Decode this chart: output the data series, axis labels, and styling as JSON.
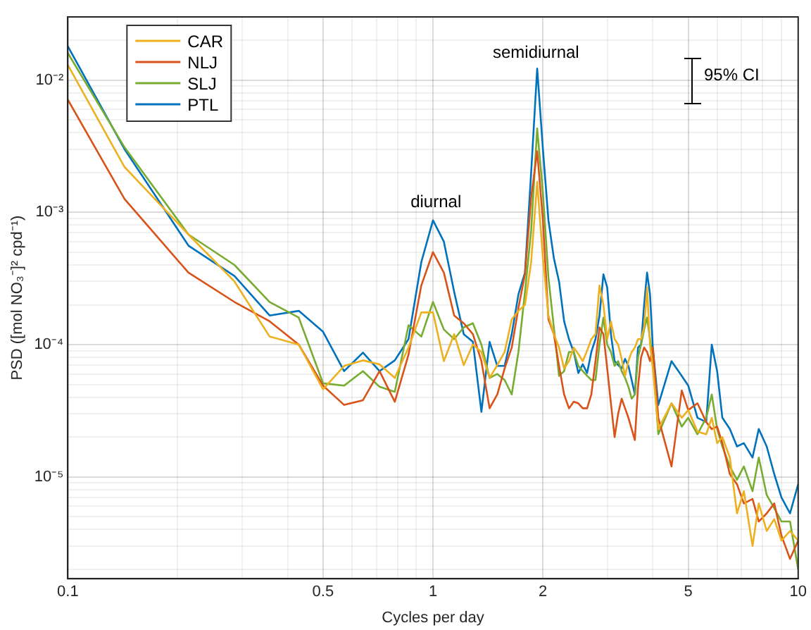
{
  "chart_data": {
    "type": "line",
    "xlabel": "Cycles per day",
    "ylabel": "PSD ([mol NO₃⁻]² cpd⁻¹)",
    "log": "xy",
    "grid": true,
    "legend": "top left",
    "xlim": [
      0.1,
      10
    ],
    "xticks": [
      0.1,
      {
        "value": 0.2,
        "label": null
      },
      {
        "value": 0.3,
        "label": null
      },
      {
        "value": 0.4,
        "label": null
      },
      0.5,
      {
        "value": 0.6,
        "label": null
      },
      {
        "value": 0.7,
        "label": null
      },
      {
        "value": 0.8,
        "label": null
      },
      {
        "value": 0.9,
        "label": null
      },
      1,
      2,
      {
        "value": 3,
        "label": null
      },
      {
        "value": 4,
        "label": null
      },
      5,
      {
        "value": 6,
        "label": null
      },
      {
        "value": 7,
        "label": null
      },
      {
        "value": 8,
        "label": null
      },
      {
        "value": 9,
        "label": null
      },
      10
    ],
    "ylim": [
      1.7e-06,
      0.03
    ],
    "yticks": [
      {
        "value": 2e-06,
        "label": null
      },
      {
        "value": 3e-06,
        "label": null
      },
      {
        "value": 4e-06,
        "label": null
      },
      {
        "value": 5e-06,
        "label": null
      },
      {
        "value": 6e-06,
        "label": null
      },
      {
        "value": 7e-06,
        "label": null
      },
      {
        "value": 8e-06,
        "label": null
      },
      {
        "value": 9e-06,
        "label": null
      },
      {
        "value": 1e-05,
        "label": "10⁻⁵"
      },
      {
        "value": 2e-05,
        "label": null
      },
      {
        "value": 3e-05,
        "label": null
      },
      {
        "value": 4e-05,
        "label": null
      },
      {
        "value": 5e-05,
        "label": null
      },
      {
        "value": 6e-05,
        "label": null
      },
      {
        "value": 7e-05,
        "label": null
      },
      {
        "value": 8e-05,
        "label": null
      },
      {
        "value": 9e-05,
        "label": null
      },
      {
        "value": 0.0001,
        "label": "10⁻⁴"
      },
      {
        "value": 0.0002,
        "label": null
      },
      {
        "value": 0.0003,
        "label": null
      },
      {
        "value": 0.0004,
        "label": null
      },
      {
        "value": 0.0005,
        "label": null
      },
      {
        "value": 0.0006,
        "label": null
      },
      {
        "value": 0.0007,
        "label": null
      },
      {
        "value": 0.0008,
        "label": null
      },
      {
        "value": 0.0009,
        "label": null
      },
      {
        "value": 0.001,
        "label": "10⁻³"
      },
      {
        "value": 0.002,
        "label": null
      },
      {
        "value": 0.003,
        "label": null
      },
      {
        "value": 0.004,
        "label": null
      },
      {
        "value": 0.005,
        "label": null
      },
      {
        "value": 0.006,
        "label": null
      },
      {
        "value": 0.007,
        "label": null
      },
      {
        "value": 0.008,
        "label": null
      },
      {
        "value": 0.009,
        "label": null
      },
      {
        "value": 0.01,
        "label": "10⁻²"
      },
      {
        "value": 0.02,
        "label": null
      },
      {
        "value": 0.03,
        "label": null
      }
    ],
    "annotations": [
      "diurnal",
      "semidiurnal",
      "95% CI"
    ],
    "x": [
      0.1,
      0.143,
      0.214,
      0.286,
      0.357,
      0.429,
      0.5,
      0.571,
      0.643,
      0.714,
      0.786,
      0.857,
      0.929,
      1.0,
      1.071,
      1.143,
      1.214,
      1.286,
      1.357,
      1.429,
      1.5,
      1.571,
      1.643,
      1.714,
      1.786,
      1.857,
      1.929,
      2.0,
      2.071,
      2.143,
      2.214,
      2.286,
      2.357,
      2.429,
      2.5,
      2.571,
      2.643,
      2.714,
      2.786,
      2.857,
      2.929,
      3.0,
      3.071,
      3.143,
      3.214,
      3.286,
      3.357,
      3.429,
      3.5,
      3.571,
      3.643,
      3.714,
      3.786,
      3.857,
      3.929,
      4.0,
      4.14,
      4.5,
      4.8,
      5.0,
      5.3,
      5.6,
      5.8,
      6.0,
      6.2,
      6.5,
      6.8,
      7.1,
      7.5,
      7.8,
      8.2,
      8.6,
      9.0,
      9.5,
      10
    ],
    "series": [
      {
        "name": "CAR",
        "color": "#edb120",
        "values": [
          0.013,
          0.0022,
          0.00068,
          0.0003,
          0.000115,
          0.0001,
          4.6e-05,
          6.9e-05,
          7.6e-05,
          7.1e-05,
          5.6e-05,
          9.5e-05,
          0.000175,
          0.000175,
          7.5e-05,
          0.00012,
          7e-05,
          0.0001,
          8.8e-05,
          5.6e-05,
          7e-05,
          8.8e-05,
          0.000155,
          0.00018,
          0.0002,
          0.00042,
          0.0017,
          0.00045,
          0.000166,
          0.00012,
          9.5e-05,
          6.6e-05,
          7.5e-05,
          9.5e-05,
          8.5e-05,
          7.5e-05,
          9e-05,
          0.00011,
          0.00012,
          0.00028,
          0.0002,
          0.00011,
          0.00015,
          0.00011,
          0.0001,
          7.8e-05,
          5.8e-05,
          7.5e-05,
          8.8e-05,
          9.5e-05,
          0.00011,
          0.00011,
          0.000135,
          0.00027,
          0.0001,
          6.6e-05,
          2.3e-05,
          3.6e-05,
          2.8e-05,
          3.2e-05,
          2.2e-05,
          2.1e-05,
          2.8e-05,
          1.8e-05,
          2e-05,
          1.4e-05,
          5.3e-06,
          7.8e-06,
          3e-06,
          6.3e-06,
          3.9e-06,
          4.8e-06,
          3.3e-06,
          3.9e-06,
          3.3e-06
        ]
      },
      {
        "name": "NLJ",
        "color": "#d95319",
        "values": [
          0.0071,
          0.00126,
          0.00035,
          0.00021,
          0.00015,
          0.0001,
          4.9e-05,
          3.5e-05,
          3.8e-05,
          6.3e-05,
          3.7e-05,
          8.4e-05,
          0.00028,
          0.0005,
          0.00035,
          0.000166,
          0.000145,
          0.00012,
          7.5e-05,
          3.3e-05,
          4.2e-05,
          6.6e-05,
          9.5e-05,
          0.00019,
          0.00034,
          0.0013,
          0.0029,
          0.00087,
          0.000155,
          0.00012,
          6.9e-05,
          4.2e-05,
          3.3e-05,
          3.7e-05,
          3.6e-05,
          3.3e-05,
          3.3e-05,
          4.2e-05,
          7.5e-05,
          0.000135,
          0.00012,
          6.6e-05,
          3.6e-05,
          2e-05,
          3e-05,
          3.9e-05,
          3.3e-05,
          2.8e-05,
          2.3e-05,
          1.9e-05,
          4.8e-05,
          8e-05,
          9.5e-05,
          8.8e-05,
          7.5e-05,
          9.5e-05,
          2.8e-05,
          1.2e-05,
          4.5e-05,
          3.2e-05,
          3.6e-05,
          2.6e-05,
          2.3e-05,
          2.4e-05,
          1.8e-05,
          1.05e-05,
          8.8e-06,
          6.3e-06,
          6.8e-06,
          4.6e-06,
          5.3e-06,
          6.3e-06,
          3.6e-06,
          2.4e-06,
          3.3e-06
        ]
      },
      {
        "name": "SLJ",
        "color": "#77ac30",
        "values": [
          0.016,
          0.0031,
          0.00068,
          0.0004,
          0.00021,
          0.00016,
          5.1e-05,
          4.9e-05,
          6.3e-05,
          4.8e-05,
          4.4e-05,
          0.00014,
          0.000115,
          0.00021,
          0.00013,
          0.00011,
          0.000135,
          0.000145,
          0.0001,
          5.6e-05,
          6e-05,
          5.4e-05,
          4.2e-05,
          8.8e-05,
          0.00025,
          0.00073,
          0.0043,
          0.0014,
          0.00032,
          0.000135,
          5.8e-05,
          6.3e-05,
          8.8e-05,
          8.8e-05,
          6.9e-05,
          6.3e-05,
          5.8e-05,
          5.4e-05,
          5.4e-05,
          0.0001,
          0.00016,
          0.0001,
          8.8e-05,
          6.9e-05,
          7.5e-05,
          6.3e-05,
          5.6e-05,
          4.8e-05,
          3.9e-05,
          4.2e-05,
          8e-05,
          0.0001,
          0.00013,
          0.00016,
          0.00011,
          8e-05,
          2.1e-05,
          3.6e-05,
          2.4e-05,
          2.8e-05,
          2.1e-05,
          2.8e-05,
          4.2e-05,
          2.3e-05,
          1.7e-05,
          1.2e-05,
          9.5e-06,
          1.2e-05,
          7.8e-06,
          1.4e-05,
          7.3e-06,
          5.8e-06,
          4.6e-06,
          4.6e-06,
          2e-06
        ]
      },
      {
        "name": "PTL",
        "color": "#0072bd",
        "values": [
          0.018,
          0.003,
          0.00056,
          0.00033,
          0.000166,
          0.00018,
          0.000125,
          6.3e-05,
          8.7e-05,
          6.3e-05,
          7.6e-05,
          0.00011,
          0.00042,
          0.00087,
          0.0006,
          0.00025,
          0.00012,
          0.000105,
          3.1e-05,
          0.000105,
          6.9e-05,
          6.9e-05,
          0.00012,
          0.00024,
          0.00035,
          0.002,
          0.0122,
          0.003,
          0.00087,
          0.00045,
          0.0003,
          0.00015,
          0.00011,
          8.8e-05,
          6.1e-05,
          7.1e-05,
          6.1e-05,
          8.8e-05,
          0.00011,
          0.000166,
          0.00034,
          0.00027,
          0.00012,
          7.5e-05,
          7e-05,
          6.6e-05,
          7.8e-05,
          6.9e-05,
          5.4e-05,
          4.2e-05,
          9.5e-05,
          0.0001,
          0.0002,
          0.00035,
          0.00024,
          9.5e-05,
          3.5e-05,
          7.5e-05,
          5.8e-05,
          4.9e-05,
          2.8e-05,
          2.6e-05,
          0.0001,
          6.3e-05,
          2.8e-05,
          2.3e-05,
          1.7e-05,
          1.8e-05,
          1.4e-05,
          2.3e-05,
          1.7e-05,
          1.05e-05,
          7e-06,
          5.3e-06,
          8.8e-06
        ]
      }
    ]
  }
}
